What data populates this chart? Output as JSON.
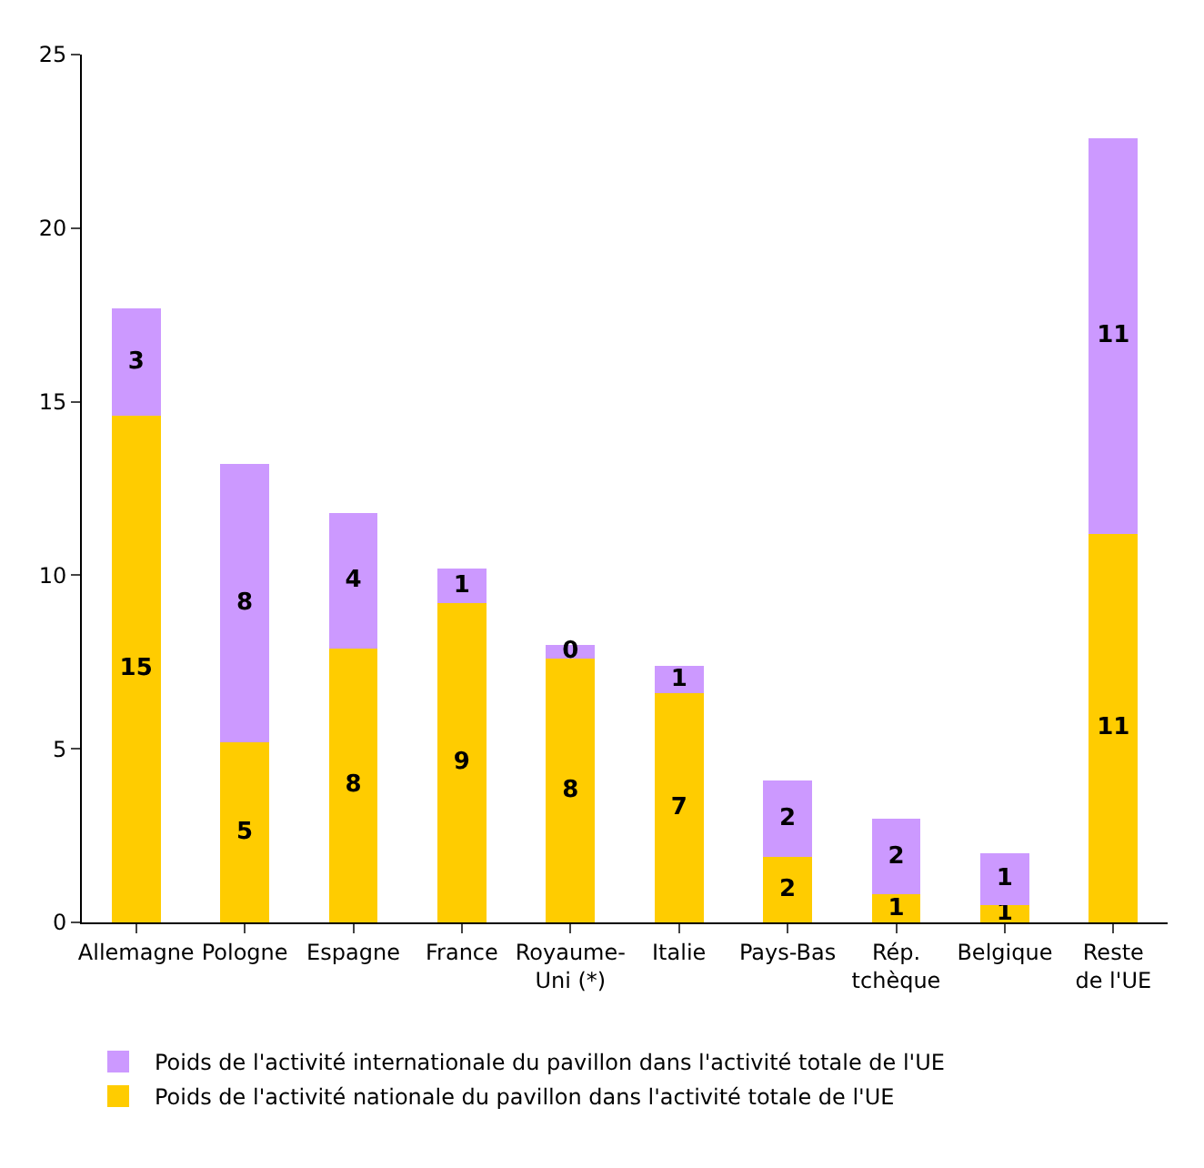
{
  "chart_data": {
    "type": "bar",
    "stacked": true,
    "categories": [
      "Allemagne",
      "Pologne",
      "Espagne",
      "France",
      "Royaume-\nUni (*)",
      "Italie",
      "Pays-Bas",
      "Rép.\ntchèque",
      "Belgique",
      "Reste\nde l'UE"
    ],
    "series": [
      {
        "name": "Poids de l'activité nationale du pavillon dans l'activité totale de l'UE",
        "color": "#ffcc00",
        "values": [
          14.6,
          5.2,
          7.9,
          9.2,
          7.6,
          6.6,
          1.9,
          0.8,
          0.5,
          11.2
        ],
        "value_labels": [
          "15",
          "5",
          "8",
          "9",
          "8",
          "7",
          "2",
          "1",
          "1",
          "11"
        ]
      },
      {
        "name": "Poids de l'activité internationale du pavillon dans l'activité totale de l'UE",
        "color": "#cc99ff",
        "values": [
          3.1,
          8.0,
          3.9,
          1.0,
          0.4,
          0.8,
          2.2,
          2.2,
          1.5,
          11.4
        ],
        "value_labels": [
          "3",
          "8",
          "4",
          "1",
          "0",
          "1",
          "2",
          "2",
          "1",
          "11"
        ]
      }
    ],
    "ylim": [
      0,
      25
    ],
    "yticks": [
      0,
      5,
      10,
      15,
      20,
      25
    ],
    "grid": false,
    "legend": "bottom"
  }
}
